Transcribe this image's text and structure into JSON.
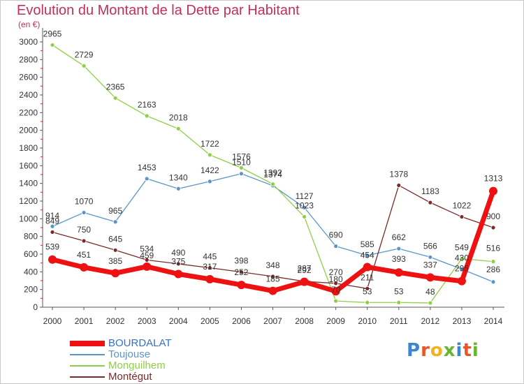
{
  "title": "Evolution du Montant de la Dette par Habitant",
  "unit": "(en €)",
  "logo": {
    "text": "Proxiti",
    "colors": [
      "#3a86d0",
      "#e8562a",
      "#f4b11c",
      "#67b530",
      "#3a86d0",
      "#e8562a",
      "#67b530"
    ]
  },
  "chart_data": {
    "type": "line",
    "x": [
      "2000",
      "2001",
      "2002",
      "2003",
      "2004",
      "2005",
      "2006",
      "2007",
      "2008",
      "2009",
      "2010",
      "2011",
      "2012",
      "2013",
      "2014"
    ],
    "ylim": [
      0,
      3000
    ],
    "yticks": [
      0,
      200,
      400,
      600,
      800,
      1000,
      1200,
      1400,
      1600,
      1800,
      2000,
      2200,
      2400,
      2600,
      2800,
      3000
    ],
    "grid": false,
    "legend_position": "bottom-left",
    "series": [
      {
        "name": "BOURDALAT",
        "color": "#ee1111",
        "width": 7,
        "labelOffset": [
          -14,
          -14,
          -13,
          -12,
          -14,
          -14,
          -14,
          -13,
          -15,
          -13,
          -13,
          -15,
          -14,
          -14,
          -14
        ],
        "values": [
          539,
          451,
          385,
          459,
          375,
          317,
          252,
          185,
          287,
          180,
          454,
          393,
          337,
          295,
          1313
        ],
        "labels": [
          "539",
          "451",
          "385",
          "459",
          "375",
          "317",
          "252",
          "185",
          "287",
          "180",
          "454",
          "393",
          "337",
          "295",
          "1313"
        ]
      },
      {
        "name": "Toujouse",
        "color": "#5b95c8",
        "width": 1.3,
        "labelOffset": [
          -11,
          -12,
          -12,
          -12,
          -12,
          -12,
          -12,
          -12,
          -12,
          -12,
          -12,
          -12,
          -12,
          -12,
          -14
        ],
        "values": [
          914,
          1070,
          965,
          1453,
          1340,
          1422,
          1510,
          1374,
          1127,
          690,
          585,
          662,
          566,
          430,
          286
        ],
        "labels": [
          "914",
          "1070",
          "965",
          "1453",
          "1340",
          "1422",
          "1510",
          "1374",
          "1127",
          "690",
          "585",
          "662",
          "566",
          "430",
          "286"
        ]
      },
      {
        "name": "Monguilhem",
        "color": "#8fcf45",
        "width": 1.3,
        "labelOffset": [
          -12,
          -12,
          -12,
          -12,
          -12,
          -12,
          -12,
          -12,
          -12,
          -12,
          -12,
          -12,
          -12,
          -12,
          -15
        ],
        "values": [
          2965,
          2729,
          2365,
          2163,
          2018,
          1722,
          1576,
          1392,
          1023,
          70,
          53,
          53,
          48,
          549,
          516
        ],
        "labels": [
          "2965",
          "2729",
          "2365",
          "2163",
          "2018",
          "1722",
          "1576",
          "1392",
          "1023",
          "70",
          "53",
          "53",
          "48",
          "549",
          "516"
        ]
      },
      {
        "name": "Montégut",
        "color": "#7a2a2a",
        "width": 1.3,
        "labelOffset": [
          -12,
          -12,
          -12,
          -12,
          -12,
          -12,
          -12,
          -12,
          -12,
          -12,
          -12,
          -12,
          -12,
          -12,
          -12
        ],
        "values": [
          849,
          750,
          645,
          534,
          490,
          445,
          398,
          348,
          292,
          270,
          211,
          1378,
          1183,
          1022,
          900
        ],
        "labels": [
          "849",
          "750",
          "645",
          "534",
          "490",
          "445",
          "398",
          "348",
          "292",
          "270",
          "211",
          "1378",
          "1183",
          "1022",
          "900"
        ]
      }
    ]
  }
}
